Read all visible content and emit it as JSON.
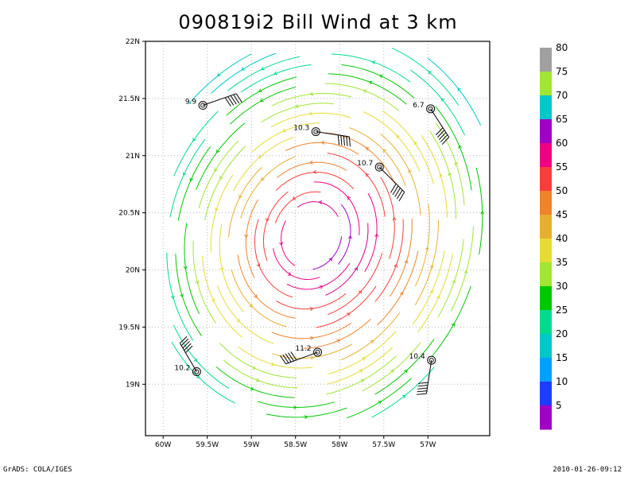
{
  "title": "090819i2 Bill Wind at 3 km",
  "footer": {
    "left": "GrADS: COLA/IGES",
    "right": "2010-01-26-09:12"
  },
  "map": {
    "x_axis": {
      "range": [
        -60.2,
        -56.3
      ],
      "ticks": [
        {
          "v": -60,
          "label": "60W"
        },
        {
          "v": -59.5,
          "label": "59.5W"
        },
        {
          "v": -59,
          "label": "59W"
        },
        {
          "v": -58.5,
          "label": "58.5W"
        },
        {
          "v": -58,
          "label": "58W"
        },
        {
          "v": -57.5,
          "label": "57.5W"
        },
        {
          "v": -57,
          "label": "57W"
        }
      ]
    },
    "y_axis": {
      "range": [
        18.55,
        22.0
      ],
      "ticks": [
        {
          "v": 19,
          "label": "19N"
        },
        {
          "v": 19.5,
          "label": "19.5N"
        },
        {
          "v": 20,
          "label": "20N"
        },
        {
          "v": 20.5,
          "label": "20.5N"
        },
        {
          "v": 21,
          "label": "21N"
        },
        {
          "v": 21.5,
          "label": "21.5N"
        },
        {
          "v": 22,
          "label": "22N"
        }
      ]
    },
    "grid": true,
    "storm_center": {
      "lon": -58.32,
      "lat": 20.3
    },
    "streamline_coloring": "wind speed (knots)",
    "dropsondes": [
      {
        "lon": -59.55,
        "lat": 21.44,
        "label": "9.9"
      },
      {
        "lon": -58.27,
        "lat": 21.21,
        "label": "10.3"
      },
      {
        "lon": -57.55,
        "lat": 20.9,
        "label": "10.7"
      },
      {
        "lon": -56.97,
        "lat": 21.41,
        "label": "6.7"
      },
      {
        "lon": -59.62,
        "lat": 19.11,
        "label": "10.2"
      },
      {
        "lon": -58.25,
        "lat": 19.28,
        "label": "11.2"
      },
      {
        "lon": -56.96,
        "lat": 19.21,
        "label": "10.4"
      }
    ]
  },
  "colorbar": {
    "colors": [
      "#a000c8",
      "#1e3cff",
      "#00a0ff",
      "#00c8c8",
      "#00dc8c",
      "#00c800",
      "#a0e632",
      "#e6dc32",
      "#e6af2d",
      "#f08228",
      "#fa3c3c",
      "#f00082",
      "#a000c8",
      "#00c8c8",
      "#a0e632",
      "#a0a0a0"
    ],
    "labels": [
      "5",
      "10",
      "15",
      "20",
      "25",
      "30",
      "35",
      "40",
      "45",
      "50",
      "55",
      "60",
      "65",
      "70",
      "75",
      "80"
    ]
  }
}
